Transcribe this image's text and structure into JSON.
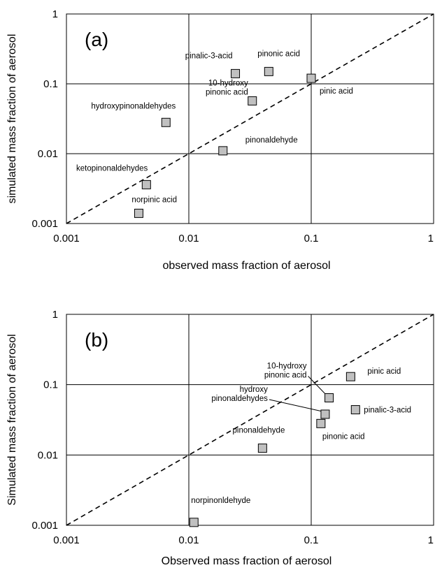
{
  "chart_data": [
    {
      "type": "scatter",
      "panel_label": "(a)",
      "xlabel": "observed mass fraction of aerosol",
      "ylabel": "simulated mass fraction of aerosol",
      "xscale": "log",
      "yscale": "log",
      "xlim": [
        0.001,
        1
      ],
      "ylim": [
        0.001,
        1
      ],
      "xticks": [
        "0.001",
        "0.01",
        "0.1",
        "1"
      ],
      "yticks": [
        "0.001",
        "0.01",
        "0.1",
        "1"
      ],
      "grid": true,
      "reference_line": "1:1 dashed",
      "points": [
        {
          "label": "pinalic-3-acid",
          "x": 0.024,
          "y": 0.14
        },
        {
          "label": "pinonic acid",
          "x": 0.045,
          "y": 0.15
        },
        {
          "label": "pinic acid",
          "x": 0.1,
          "y": 0.12
        },
        {
          "label": "10-hydroxy pinonic acid",
          "label_lines": [
            "10-hydroxy",
            "pinonic acid"
          ],
          "x": 0.033,
          "y": 0.057
        },
        {
          "label": "hydroxypinonaldehydes",
          "x": 0.0065,
          "y": 0.028
        },
        {
          "label": "pinonaldehyde",
          "x": 0.019,
          "y": 0.011
        },
        {
          "label": "ketopinonaldehydes",
          "x": 0.0045,
          "y": 0.0036
        },
        {
          "label": "norpinic acid",
          "x": 0.0039,
          "y": 0.0014
        }
      ]
    },
    {
      "type": "scatter",
      "panel_label": "(b)",
      "xlabel": "Observed mass fraction of aerosol",
      "ylabel": "Simulated mass fraction of aerosol",
      "xscale": "log",
      "yscale": "log",
      "xlim": [
        0.001,
        1
      ],
      "ylim": [
        0.001,
        1
      ],
      "xticks": [
        "0.001",
        "0.01",
        "0.1",
        "1"
      ],
      "yticks": [
        "0.001",
        "0.01",
        "0.1",
        "1"
      ],
      "grid": true,
      "reference_line": "1:1 dashed",
      "points": [
        {
          "label": "pinic acid",
          "x": 0.21,
          "y": 0.13
        },
        {
          "label": "10-hydroxy pinonic acid",
          "label_lines": [
            "10-hydroxy",
            "pinonic acid"
          ],
          "x": 0.14,
          "y": 0.065
        },
        {
          "label": "pinalic-3-acid",
          "x": 0.23,
          "y": 0.044
        },
        {
          "label": "hydroxy pinonaldehydes",
          "label_lines": [
            "hydroxy",
            "pinonaldehydes"
          ],
          "x": 0.13,
          "y": 0.038
        },
        {
          "label": "pinonic acid",
          "x": 0.12,
          "y": 0.028
        },
        {
          "label": "pinonaldehyde",
          "x": 0.04,
          "y": 0.0125
        },
        {
          "label": "norpinonldehyde",
          "x": 0.011,
          "y": 0.0011
        }
      ]
    }
  ]
}
